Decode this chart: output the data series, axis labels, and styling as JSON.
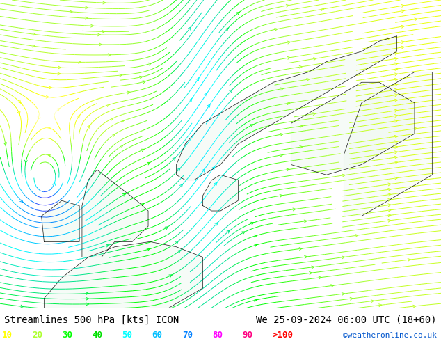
{
  "title_left": "Streamlines 500 hPa [kts] ICON",
  "title_right": "We 25-09-2024 06:00 UTC (18+60)",
  "copyright": "©weatheronline.co.uk",
  "legend_values": [
    "10",
    "20",
    "30",
    "40",
    "50",
    "60",
    "70",
    "80",
    "90",
    ">100"
  ],
  "legend_colors": [
    "#ffff00",
    "#adff2f",
    "#00ff00",
    "#00e000",
    "#00ffff",
    "#00bfff",
    "#0080ff",
    "#ff00ff",
    "#ff0080",
    "#ff0000"
  ],
  "bg_color": "#ffffff",
  "map_bg": "#ddeedd",
  "figsize": [
    6.34,
    4.9
  ],
  "dpi": 100,
  "font_size_title": 10,
  "font_size_legend": 9,
  "font_size_copyright": 8,
  "speed_colors": [
    "#ffffff",
    "#ffff00",
    "#adff2f",
    "#00ff00",
    "#00e0a0",
    "#00ffff",
    "#00bfff",
    "#0080ff",
    "#8000ff",
    "#ff00ff",
    "#ff0000"
  ],
  "xlim": [
    -15,
    35
  ],
  "ylim": [
    45,
    75
  ]
}
